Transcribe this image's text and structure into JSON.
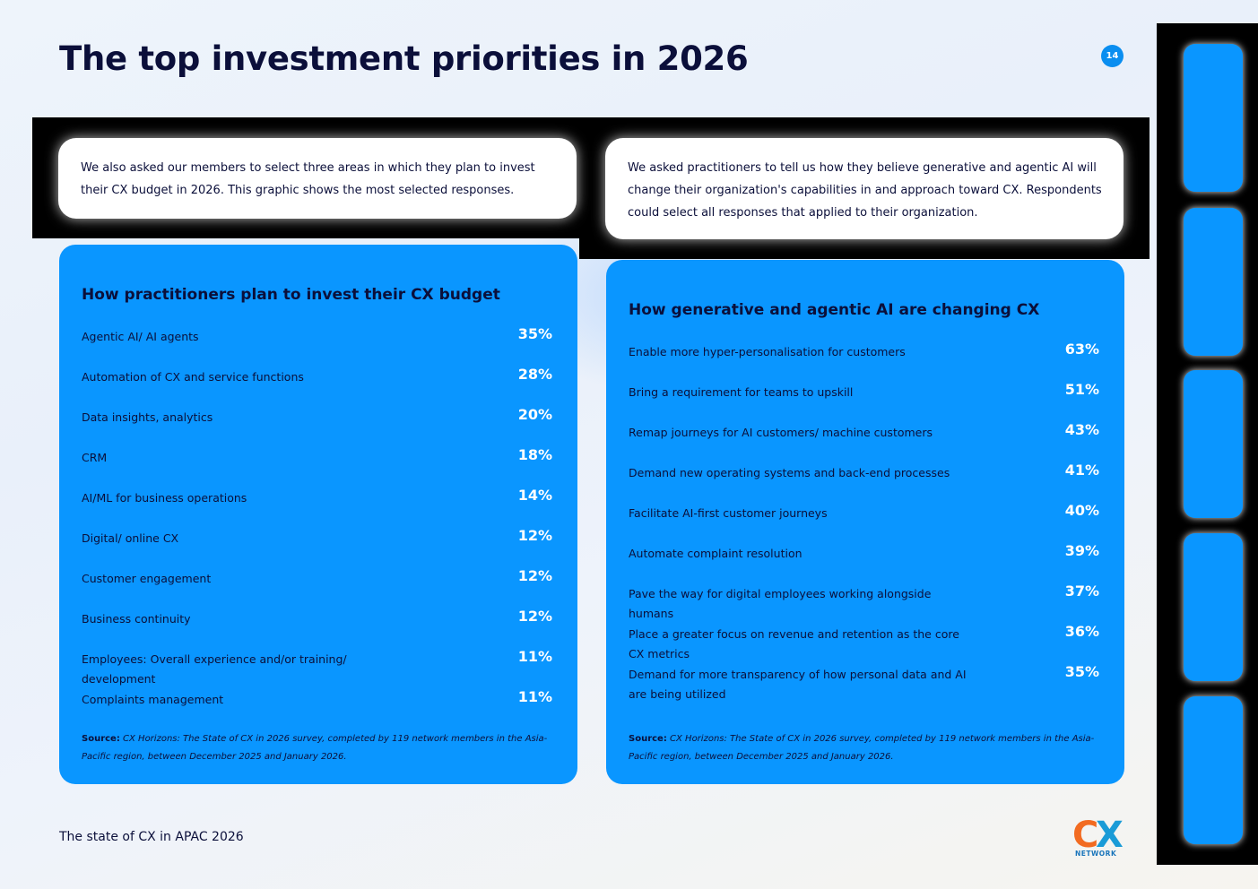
{
  "page": {
    "title": "The top investment priorities in 2026",
    "page_number": "14",
    "footer": "The state of CX in APAC 2026"
  },
  "left": {
    "intro": "We also asked our members to select three areas in which they plan to invest their CX budget in 2026. This graphic shows the most selected responses.",
    "title": "How practitioners plan to invest their CX budget",
    "rows": [
      {
        "label": "Agentic AI/ AI agents",
        "value": "35%"
      },
      {
        "label": "Automation of CX and service functions",
        "value": "28%"
      },
      {
        "label": "Data insights, analytics",
        "value": "20%"
      },
      {
        "label": "CRM",
        "value": "18%"
      },
      {
        "label": "AI/ML for business operations",
        "value": "14%"
      },
      {
        "label": "Digital/ online CX",
        "value": "12%"
      },
      {
        "label": "Customer engagement",
        "value": "12%"
      },
      {
        "label": "Business continuity",
        "value": "12%"
      },
      {
        "label": "Employees: Overall experience and/or training/ development",
        "value": "11%"
      },
      {
        "label": "Complaints management",
        "value": "11%"
      }
    ],
    "source_label": "Source:",
    "source_text": "CX Horizons: The State of CX in 2026 survey, completed by 119 network members in the Asia-Pacific region, between December 2025 and January 2026."
  },
  "right": {
    "intro": "We asked practitioners to tell us how they believe generative and agentic AI will change their organization's capabilities in and approach toward CX. Respondents could select all responses that applied to their organization.",
    "title": "How generative and agentic AI are changing CX",
    "rows": [
      {
        "label": "Enable more hyper-personalisation for customers",
        "value": "63%"
      },
      {
        "label": "Bring a requirement for teams to upskill",
        "value": "51%"
      },
      {
        "label": "Remap journeys for AI customers/ machine customers",
        "value": "43%"
      },
      {
        "label": "Demand new operating systems and back-end processes",
        "value": "41%"
      },
      {
        "label": "Facilitate AI-first customer journeys",
        "value": "40%"
      },
      {
        "label": "Automate complaint resolution",
        "value": "39%"
      },
      {
        "label": "Pave the way for digital employees working alongside humans",
        "value": "37%"
      },
      {
        "label": "Place a greater focus on revenue and retention as the core CX metrics",
        "value": "36%"
      },
      {
        "label": "Demand for more transparency of how personal data and AI are being utilized",
        "value": "35%"
      }
    ],
    "source_label": "Source:",
    "source_text": "CX Horizons: The State of CX in 2026 survey, completed by 119 network members in the Asia-Pacific region, between December 2025 and January 2026."
  },
  "logo": {
    "text": "CX",
    "subtext": "NETWORK",
    "colors": {
      "c": "#f26b21",
      "x": "#1a9bd7",
      "subtext": "#1a75bb"
    }
  },
  "colors": {
    "panel": "#0a96ff",
    "title": "#0b0f3a",
    "value": "#ffffff"
  }
}
